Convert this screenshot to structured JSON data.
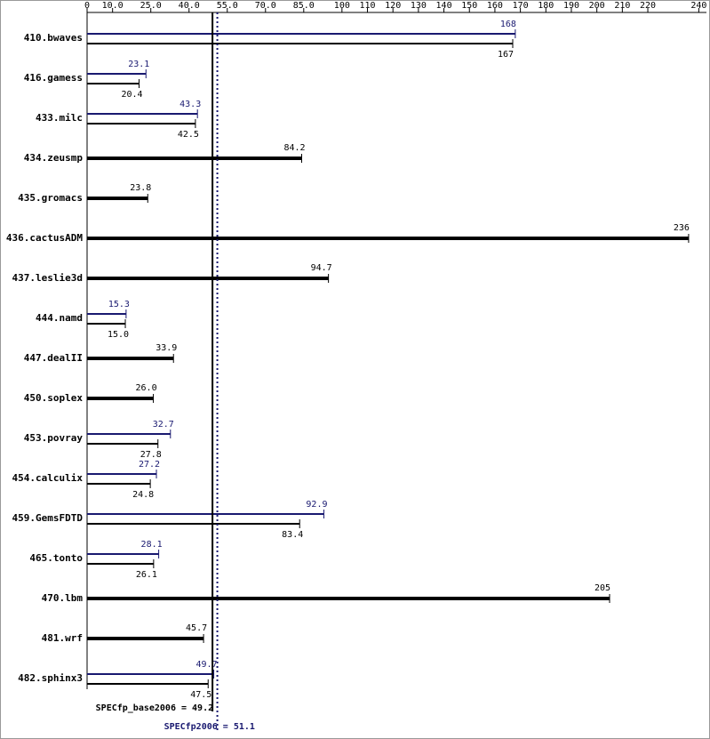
{
  "chart_data": {
    "type": "hbar",
    "categories": [
      "410.bwaves",
      "416.gamess",
      "433.milc",
      "434.zeusmp",
      "435.gromacs",
      "436.cactusADM",
      "437.leslie3d",
      "444.namd",
      "447.dealII",
      "450.soplex",
      "453.povray",
      "454.calculix",
      "459.GemsFDTD",
      "465.tonto",
      "470.lbm",
      "481.wrf",
      "482.sphinx3"
    ],
    "series": [
      {
        "name": "SPECfp2006",
        "color": "#191970",
        "values": [
          168,
          23.1,
          43.3,
          null,
          null,
          null,
          null,
          15.3,
          null,
          null,
          32.7,
          27.2,
          92.9,
          28.1,
          null,
          null,
          49.7
        ],
        "value_labels": [
          "168",
          "23.1",
          "43.3",
          null,
          null,
          null,
          null,
          "15.3",
          null,
          null,
          "32.7",
          "27.2",
          "92.9",
          "28.1",
          null,
          null,
          "49.7"
        ]
      },
      {
        "name": "SPECfp_base2006",
        "color": "#000000",
        "values": [
          167,
          20.4,
          42.5,
          84.2,
          23.8,
          236,
          94.7,
          15,
          33.9,
          26,
          27.8,
          24.8,
          83.4,
          26.1,
          205,
          45.7,
          47.5
        ],
        "value_labels": [
          "167",
          "20.4",
          "42.5",
          "84.2",
          "23.8",
          "236",
          "94.7",
          "15.0",
          "33.9",
          "26.0",
          "27.8",
          "24.8",
          "83.4",
          "26.1",
          "205",
          "45.7",
          "47.5"
        ]
      }
    ],
    "xlim": [
      0,
      243
    ],
    "xticks": [
      0,
      {
        "value": 10,
        "label": "10.0"
      },
      {
        "value": 25,
        "label": "25.0"
      },
      {
        "value": 40,
        "label": "40.0"
      },
      {
        "value": 55,
        "label": "55.0"
      },
      {
        "value": 70,
        "label": "70.0"
      },
      {
        "value": 85,
        "label": "85.0"
      },
      100,
      110,
      120,
      130,
      140,
      150,
      160,
      170,
      180,
      190,
      200,
      210,
      220,
      240
    ],
    "reference_lines": [
      {
        "label": "SPECfp_base2006 = 49.2",
        "value": 49.2,
        "color": "#000000"
      },
      {
        "label": "SPECfp2006 = 51.1",
        "value": 51.1,
        "color": "#191970"
      }
    ]
  }
}
